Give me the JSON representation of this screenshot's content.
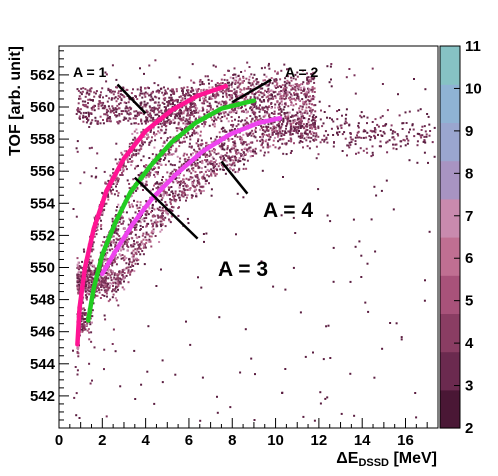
{
  "chart_data": {
    "type": "heatmap",
    "title": "",
    "xlabel": {
      "main": "ΔE",
      "sub": "DSSD",
      "unit": " [MeV]"
    },
    "ylabel": "TOF [arb. unit]",
    "xlim": [
      0,
      17.5
    ],
    "ylim": [
      540.0,
      563.8
    ],
    "x_ticks": [
      "0",
      "2",
      "4",
      "6",
      "8",
      "10",
      "12",
      "14",
      "16"
    ],
    "y_ticks": [
      "542",
      "544",
      "546",
      "548",
      "550",
      "552",
      "554",
      "556",
      "558",
      "560",
      "562"
    ],
    "colorbar": {
      "range": [
        2,
        11
      ],
      "ticks": [
        "2",
        "3",
        "4",
        "5",
        "6",
        "7",
        "8",
        "9",
        "10",
        "11"
      ],
      "colors": [
        "#4a1735",
        "#6b2a4f",
        "#8a3d63",
        "#a8527a",
        "#c06f92",
        "#c98aae",
        "#a894c2",
        "#9aa6cf",
        "#8fb3d4",
        "#86c2c4"
      ]
    },
    "grid": false,
    "series": [
      {
        "name": "A = 1",
        "color": "#ff1493",
        "points": [
          [
            0.85,
            545.2
          ],
          [
            0.95,
            547.5
          ],
          [
            1.2,
            550.0
          ],
          [
            1.6,
            552.4
          ],
          [
            2.2,
            554.8
          ],
          [
            3.0,
            556.8
          ],
          [
            4.0,
            558.5
          ],
          [
            5.2,
            559.8
          ],
          [
            6.4,
            560.7
          ],
          [
            7.7,
            561.3
          ]
        ]
      },
      {
        "name": "A = 2",
        "color": "#22cc22",
        "points": [
          [
            1.35,
            546.7
          ],
          [
            1.6,
            548.7
          ],
          [
            2.0,
            550.8
          ],
          [
            2.6,
            552.8
          ],
          [
            3.3,
            554.7
          ],
          [
            4.2,
            556.3
          ],
          [
            5.2,
            557.8
          ],
          [
            6.3,
            559.0
          ],
          [
            7.5,
            559.9
          ],
          [
            9.0,
            560.4
          ]
        ]
      },
      {
        "name": "A = 3",
        "color": "#ee44ee",
        "points": [
          [
            2.0,
            549.6
          ],
          [
            2.6,
            551.0
          ],
          [
            3.4,
            552.7
          ],
          [
            4.3,
            554.3
          ],
          [
            5.4,
            555.8
          ],
          [
            6.6,
            557.2
          ],
          [
            7.9,
            558.3
          ],
          [
            9.2,
            559.0
          ],
          [
            10.2,
            559.3
          ]
        ]
      }
    ],
    "annotations": [
      {
        "text": "A = 1",
        "line_from": [
          2.7,
          561.4
        ],
        "line_to": [
          4.0,
          559.6
        ]
      },
      {
        "text": "A = 2",
        "line_from": [
          9.8,
          561.7
        ],
        "line_to": [
          8.0,
          560.3
        ]
      },
      {
        "text": "A = 3",
        "line_from": [
          6.4,
          551.8
        ],
        "line_to": [
          3.5,
          555.6
        ]
      },
      {
        "text": "A = 4",
        "line_from": [
          8.7,
          554.6
        ],
        "line_to": [
          7.5,
          556.6
        ]
      }
    ]
  }
}
